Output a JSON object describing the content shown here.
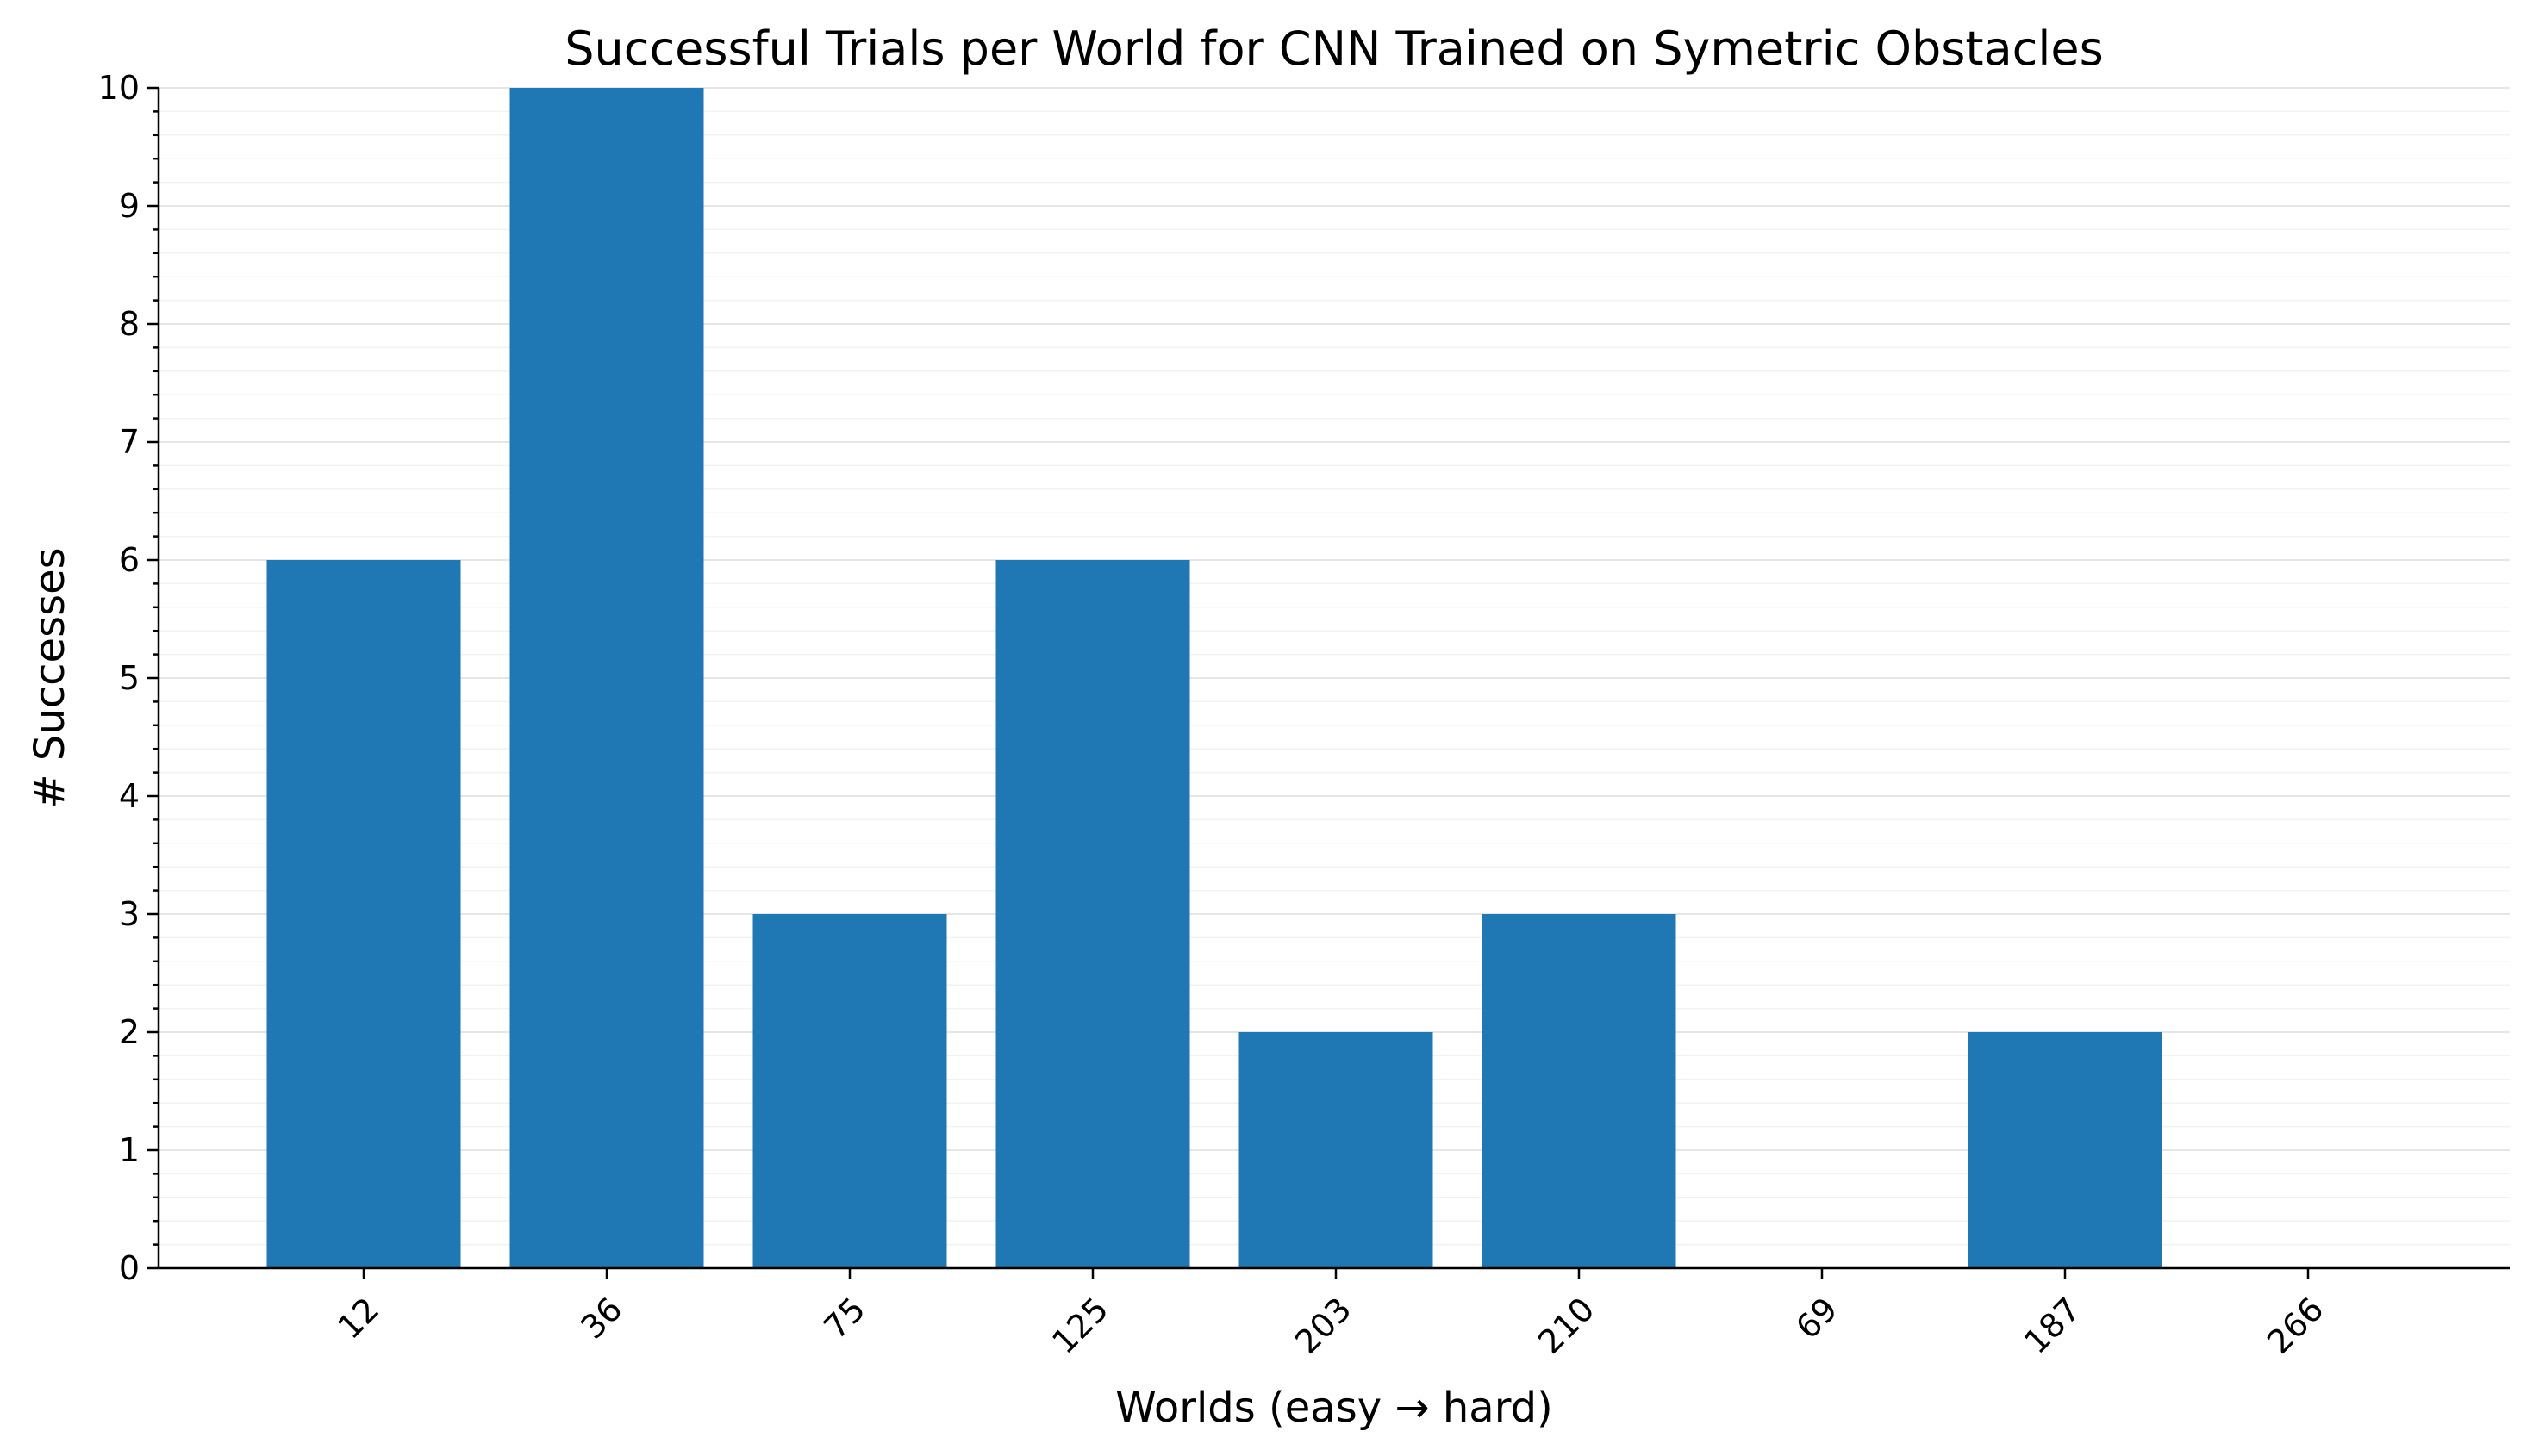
{
  "chart_data": {
    "type": "bar",
    "title": "Successful Trials per World for CNN Trained on Symetric Obstacles",
    "xlabel": "Worlds (easy → hard)",
    "ylabel": "# Successes",
    "categories": [
      "12",
      "36",
      "75",
      "125",
      "203",
      "210",
      "69",
      "187",
      "266"
    ],
    "values": [
      6,
      10,
      3,
      6,
      2,
      3,
      0,
      2,
      0
    ],
    "ylim": [
      0,
      10
    ],
    "yticks": [
      0,
      1,
      2,
      3,
      4,
      5,
      6,
      7,
      8,
      9,
      10
    ],
    "grid": true,
    "bar_color": "#1f77b4",
    "legend": "none"
  }
}
